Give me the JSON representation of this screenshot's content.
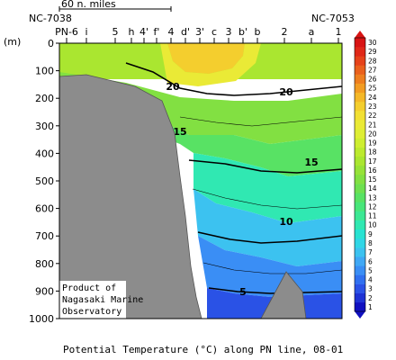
{
  "chart_data": {
    "type": "heatmap",
    "title": "Potential Temperature (°C) along PN line, 08-01",
    "ylabel": "(m)",
    "yticks": [
      0,
      100,
      200,
      300,
      400,
      500,
      600,
      700,
      800,
      900,
      1000
    ],
    "ylim": [
      1000,
      0
    ],
    "stations": [
      "PN-6",
      "i",
      "5",
      "h",
      "4'",
      "f'",
      "4",
      "d'",
      "3'",
      "c",
      "3",
      "b'",
      "b",
      "2",
      "a",
      "1"
    ],
    "endpoint_labels": [
      "NC-7038",
      "NC-7053"
    ],
    "scale_label": "60 n. miles",
    "credit": [
      "Product of",
      "Nagasaki Marine",
      "Observatory"
    ],
    "colorbar": {
      "min": 1,
      "max": 30,
      "ticks": [
        1,
        2,
        3,
        4,
        5,
        6,
        7,
        8,
        9,
        10,
        11,
        12,
        13,
        14,
        15,
        16,
        17,
        18,
        19,
        20,
        21,
        22,
        23,
        24,
        25,
        26,
        27,
        28,
        29,
        30
      ],
      "colors": [
        "#1010c0",
        "#1e32d4",
        "#2a52e6",
        "#3070f0",
        "#3a8ef5",
        "#40a8f5",
        "#3cc2f0",
        "#30d6e6",
        "#28e2d2",
        "#30e8b2",
        "#3ce894",
        "#48e67a",
        "#58e264",
        "#6ee050",
        "#82e042",
        "#96e238",
        "#aae630",
        "#bcea2e",
        "#ceee30",
        "#deee34",
        "#eaea36",
        "#f2e034",
        "#f4ce2e",
        "#f4b828",
        "#f29c22",
        "#ee7e1e",
        "#ea601c",
        "#e6421a",
        "#e02818",
        "#d81414"
      ]
    },
    "contour_labels": [
      "20",
      "15",
      "20",
      "15",
      "10",
      "5"
    ]
  }
}
